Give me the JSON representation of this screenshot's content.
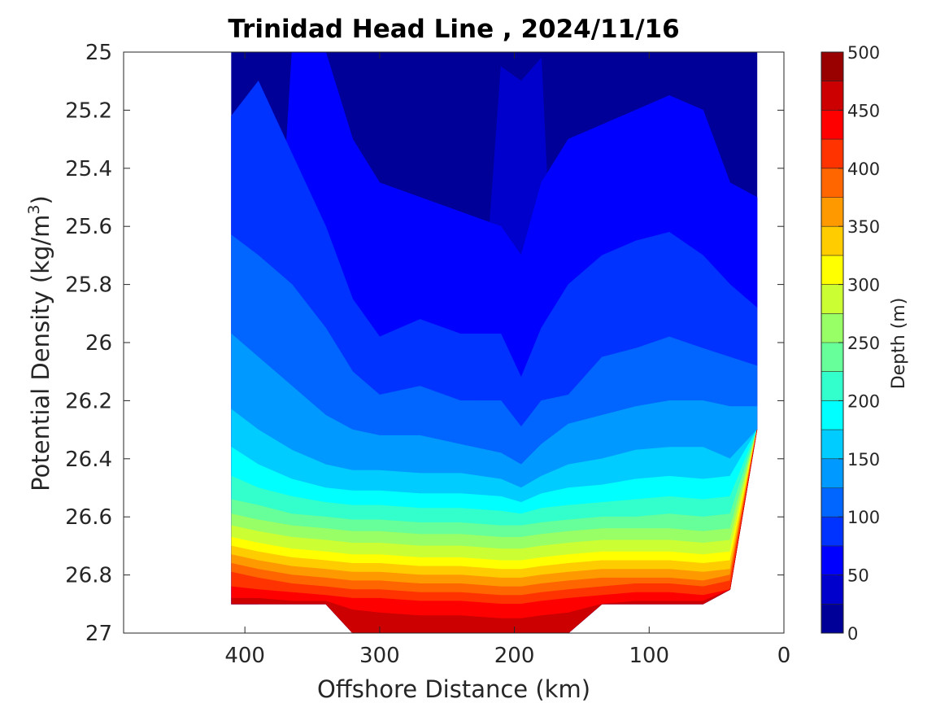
{
  "chart_data": {
    "type": "contour",
    "title": "Trinidad Head Line , 2024/11/16",
    "xlabel": "Offshore Distance (km)",
    "ylabel_main": "Potential Density (kg/m",
    "ylabel_sup": "3",
    "ylabel_close": ")",
    "xlim": [
      490,
      0
    ],
    "x_reversed": true,
    "ylim": [
      25,
      27
    ],
    "y_reversed": true,
    "xticks": [
      400,
      300,
      200,
      100,
      0
    ],
    "xtick_labels": [
      "400",
      "300",
      "200",
      "100",
      "0"
    ],
    "yticks": [
      25,
      25.2,
      25.4,
      25.6,
      25.8,
      26,
      26.2,
      26.4,
      26.6,
      26.8,
      27
    ],
    "ytick_labels": [
      "25",
      "25.2",
      "25.4",
      "25.6",
      "25.8",
      "26",
      "26.2",
      "26.4",
      "26.6",
      "26.8",
      "27"
    ],
    "colorbar": {
      "label": "Depth (m)",
      "colormap": "jet",
      "range": [
        0,
        500
      ],
      "step": 25,
      "ticks": [
        0,
        50,
        100,
        150,
        200,
        250,
        300,
        350,
        400,
        450,
        500
      ],
      "tick_labels": [
        "0",
        "50",
        "100",
        "150",
        "200",
        "250",
        "300",
        "350",
        "400",
        "450",
        "500"
      ]
    },
    "x": [
      410,
      390,
      365,
      340,
      320,
      300,
      270,
      240,
      210,
      195,
      180,
      160,
      135,
      110,
      85,
      60,
      40,
      20
    ],
    "y_bottom_at_x": [
      26.9,
      26.9,
      26.9,
      26.9,
      27.0,
      27.0,
      27.0,
      27.0,
      27.0,
      27.0,
      27.0,
      27.0,
      26.9,
      26.9,
      26.9,
      26.9,
      26.85,
      26.3
    ],
    "depth_contours": [
      {
        "depth": 25,
        "density": [
          null,
          null,
          null,
          null,
          null,
          null,
          null,
          null,
          25.05,
          25.1,
          25.02,
          null,
          null,
          null,
          null,
          null,
          null,
          null
        ]
      },
      {
        "depth": 50,
        "density": [
          null,
          null,
          25.0,
          25.0,
          25.3,
          25.45,
          25.5,
          25.55,
          25.6,
          25.7,
          25.45,
          25.3,
          25.25,
          25.2,
          25.15,
          25.2,
          25.45,
          25.5
        ]
      },
      {
        "depth": 75,
        "density": [
          25.22,
          25.1,
          25.35,
          25.6,
          25.85,
          25.98,
          25.92,
          25.97,
          25.97,
          26.12,
          25.95,
          25.8,
          25.7,
          25.65,
          25.62,
          25.7,
          25.8,
          25.88
        ]
      },
      {
        "depth": 100,
        "density": [
          25.63,
          25.7,
          25.8,
          25.95,
          26.1,
          26.18,
          26.15,
          26.2,
          26.2,
          26.29,
          26.2,
          26.18,
          26.05,
          26.02,
          25.98,
          26.02,
          26.05,
          26.08
        ]
      },
      {
        "depth": 125,
        "density": [
          25.97,
          26.05,
          26.15,
          26.25,
          26.3,
          26.32,
          26.32,
          26.35,
          26.38,
          26.42,
          26.35,
          26.28,
          26.25,
          26.22,
          26.2,
          26.2,
          26.22,
          26.22
        ]
      },
      {
        "depth": 150,
        "density": [
          26.23,
          26.3,
          26.37,
          26.42,
          26.44,
          26.44,
          26.45,
          26.45,
          26.47,
          26.5,
          26.46,
          26.42,
          26.4,
          26.37,
          26.36,
          26.36,
          26.4,
          26.32
        ]
      },
      {
        "depth": 175,
        "density": [
          26.36,
          26.42,
          26.47,
          26.5,
          26.51,
          26.51,
          26.52,
          26.52,
          26.53,
          26.55,
          26.52,
          26.5,
          26.49,
          26.47,
          26.46,
          26.47,
          26.46,
          null
        ]
      },
      {
        "depth": 200,
        "density": [
          26.46,
          26.5,
          26.53,
          26.55,
          26.56,
          26.56,
          26.57,
          26.57,
          26.58,
          26.59,
          26.57,
          26.56,
          26.55,
          26.54,
          26.53,
          26.54,
          26.53,
          null
        ]
      },
      {
        "depth": 225,
        "density": [
          26.54,
          26.56,
          26.59,
          26.6,
          26.61,
          26.61,
          26.62,
          26.62,
          26.63,
          26.63,
          26.62,
          26.61,
          26.6,
          26.6,
          26.59,
          26.6,
          26.59,
          null
        ]
      },
      {
        "depth": 250,
        "density": [
          26.59,
          26.61,
          26.63,
          26.64,
          26.65,
          26.65,
          26.66,
          26.66,
          26.67,
          26.67,
          26.66,
          26.65,
          26.64,
          26.64,
          26.64,
          26.65,
          26.64,
          null
        ]
      },
      {
        "depth": 275,
        "density": [
          26.63,
          26.65,
          26.67,
          26.68,
          26.69,
          26.69,
          26.7,
          26.7,
          26.71,
          26.71,
          26.7,
          26.69,
          26.68,
          26.68,
          26.68,
          26.69,
          26.68,
          null
        ]
      },
      {
        "depth": 300,
        "density": [
          26.67,
          26.69,
          26.71,
          26.72,
          26.73,
          26.73,
          26.74,
          26.74,
          26.75,
          26.75,
          26.74,
          26.73,
          26.72,
          26.72,
          26.72,
          26.73,
          26.72,
          null
        ]
      },
      {
        "depth": 325,
        "density": [
          26.7,
          26.72,
          26.74,
          26.75,
          26.76,
          26.76,
          26.77,
          26.77,
          26.78,
          26.78,
          26.77,
          26.76,
          26.75,
          26.75,
          26.75,
          26.76,
          26.75,
          null
        ]
      },
      {
        "depth": 350,
        "density": [
          26.73,
          26.75,
          26.77,
          26.78,
          26.79,
          26.79,
          26.8,
          26.8,
          26.81,
          26.81,
          26.8,
          26.79,
          26.78,
          26.78,
          26.78,
          26.79,
          26.78,
          null
        ]
      },
      {
        "depth": 375,
        "density": [
          26.76,
          26.78,
          26.8,
          26.81,
          26.82,
          26.82,
          26.83,
          26.83,
          26.84,
          26.84,
          26.83,
          26.82,
          26.81,
          26.81,
          26.81,
          26.82,
          26.8,
          null
        ]
      },
      {
        "depth": 400,
        "density": [
          26.79,
          26.81,
          26.83,
          26.84,
          26.85,
          26.85,
          26.86,
          26.86,
          26.87,
          26.87,
          26.86,
          26.85,
          26.84,
          26.83,
          26.83,
          26.84,
          26.82,
          null
        ]
      },
      {
        "depth": 425,
        "density": [
          26.84,
          26.85,
          26.86,
          26.87,
          26.88,
          26.88,
          26.89,
          26.89,
          26.9,
          26.9,
          26.89,
          26.88,
          26.87,
          26.86,
          26.86,
          26.87,
          26.85,
          null
        ]
      },
      {
        "depth": 450,
        "density": [
          26.88,
          26.88,
          26.89,
          26.89,
          26.92,
          26.93,
          26.94,
          26.94,
          26.95,
          26.95,
          26.94,
          26.93,
          26.9,
          26.89,
          26.89,
          26.89,
          26.88,
          null
        ]
      }
    ]
  }
}
